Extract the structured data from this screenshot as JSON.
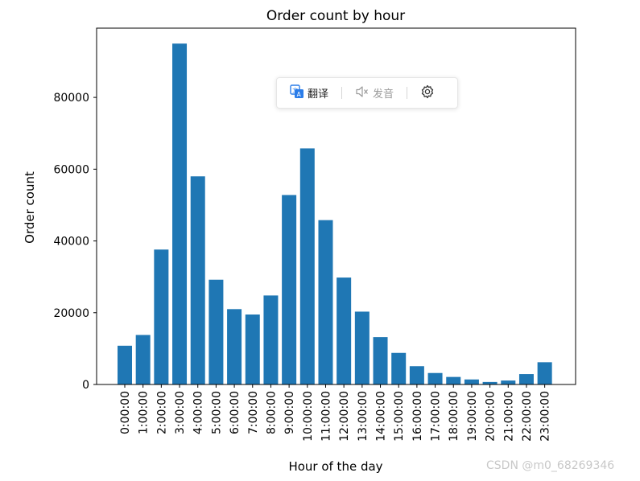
{
  "chart_data": {
    "type": "bar",
    "title": "Order count by hour",
    "xlabel": "Hour of the day",
    "ylabel": "Order count",
    "categories": [
      "0:00:00",
      "1:00:00",
      "2:00:00",
      "3:00:00",
      "4:00:00",
      "5:00:00",
      "6:00:00",
      "7:00:00",
      "8:00:00",
      "9:00:00",
      "10:00:00",
      "11:00:00",
      "12:00:00",
      "13:00:00",
      "14:00:00",
      "15:00:00",
      "16:00:00",
      "17:00:00",
      "18:00:00",
      "19:00:00",
      "20:00:00",
      "21:00:00",
      "22:00:00",
      "23:00:00"
    ],
    "values": [
      10800,
      13800,
      37600,
      95000,
      58000,
      29200,
      21000,
      19500,
      24800,
      52800,
      65800,
      45800,
      29800,
      20300,
      13200,
      8800,
      5100,
      3200,
      2100,
      1400,
      700,
      1100,
      2900,
      6200
    ],
    "ylim": [
      0,
      99300
    ],
    "yticks": [
      0,
      20000,
      40000,
      60000,
      80000
    ],
    "ytick_labels": [
      "0",
      "20000",
      "40000",
      "60000",
      "80000"
    ],
    "bar_color": "#1f77b4",
    "grid": false
  },
  "toolbar": {
    "translate_label": "翻译",
    "speak_label": "发音",
    "translate_icon": "translate-icon",
    "speak_icon": "speaker-muted-icon",
    "settings_icon": "gear-icon"
  },
  "watermark": "CSDN @m0_68269346"
}
